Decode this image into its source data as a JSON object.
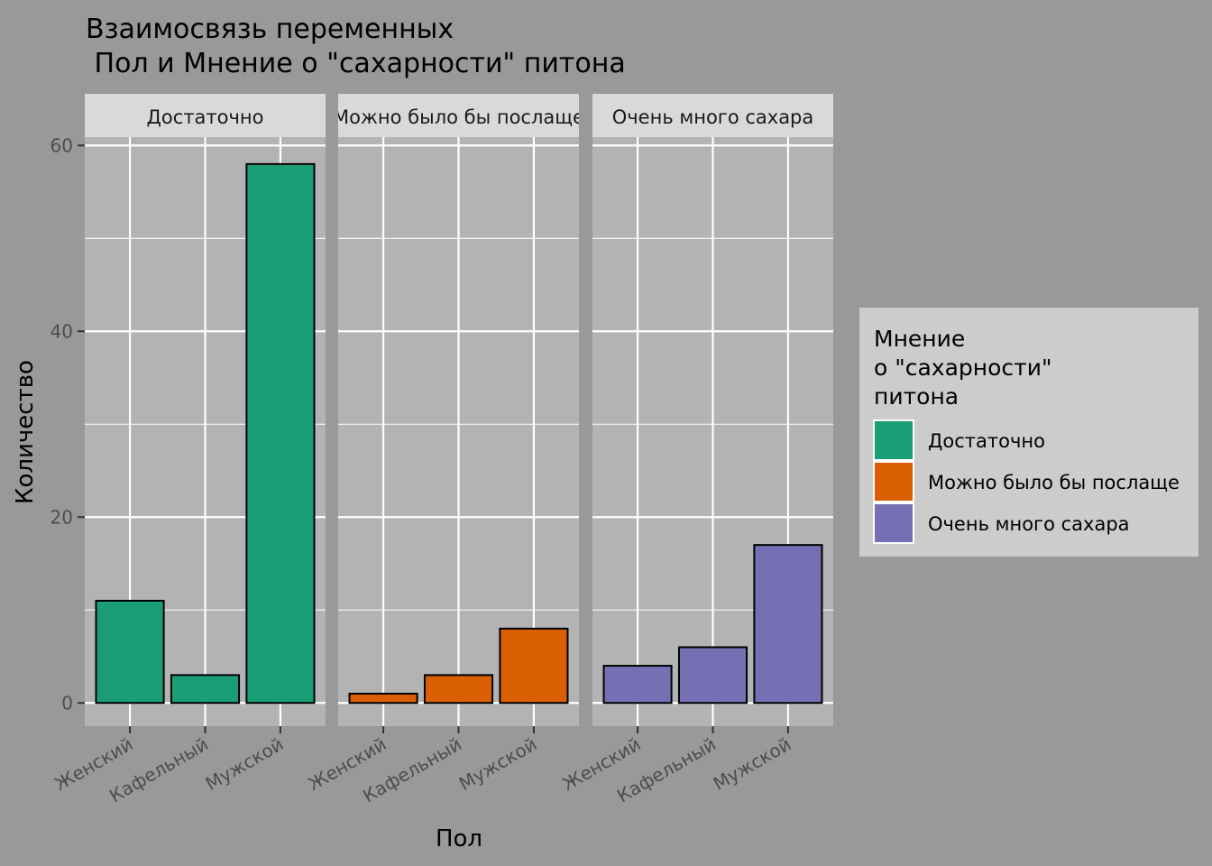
{
  "title_lines": [
    "Взаимосвязь переменных",
    " Пол и Мнение о \"сахарности\" питона"
  ],
  "colors": {
    "background": "#999999",
    "panel": "#b3b3b3",
    "strip": "#d9d9d9",
    "grid": "#ffffff",
    "legend_bg": "#cccccc"
  },
  "chart_data": {
    "type": "bar",
    "facet_by": "Мнение о \"сахарности\" питона",
    "categories": [
      "Женский",
      "Кафельный",
      "Мужской"
    ],
    "xlabel": "Пол",
    "ylabel": "Количество",
    "ylim": [
      -2.5,
      60.9
    ],
    "yticks": [
      0,
      20,
      40,
      60
    ],
    "grid": true,
    "legend_position": "right",
    "legend_title_lines": [
      "Мнение",
      "о \"сахарности\"",
      "питона"
    ],
    "facets": [
      {
        "label": "Достаточно",
        "color": "#1b9e77",
        "values": [
          11,
          3,
          58
        ]
      },
      {
        "label": "Можно было бы послаще",
        "color": "#d95f02",
        "values": [
          1,
          3,
          8
        ]
      },
      {
        "label": "Очень много сахара",
        "color": "#7570b3",
        "values": [
          4,
          6,
          17
        ]
      }
    ]
  }
}
